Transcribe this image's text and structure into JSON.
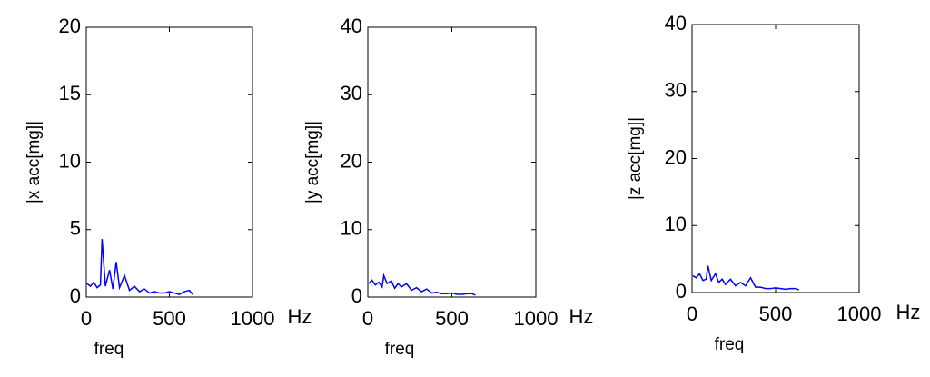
{
  "chart_data": [
    {
      "type": "line",
      "ylabel": "|x acc[mg]|",
      "xlabel": "freq",
      "x_unit": "Hz",
      "color": "#0000ff",
      "xlim": [
        0,
        1000
      ],
      "xticks": [
        0,
        500,
        1000
      ],
      "ylim": [
        0,
        20
      ],
      "yticks": [
        0,
        5,
        10,
        15,
        20
      ],
      "x": [
        5,
        25,
        45,
        65,
        85,
        95,
        115,
        140,
        160,
        180,
        200,
        230,
        260,
        290,
        320,
        350,
        380,
        410,
        440,
        470,
        500,
        530,
        560,
        590,
        620,
        640
      ],
      "values": [
        1.0,
        0.8,
        1.1,
        0.7,
        0.9,
        4.3,
        0.8,
        2.0,
        0.6,
        2.6,
        0.7,
        1.6,
        0.5,
        0.8,
        0.4,
        0.6,
        0.3,
        0.4,
        0.3,
        0.3,
        0.4,
        0.3,
        0.2,
        0.4,
        0.5,
        0.2
      ]
    },
    {
      "type": "line",
      "ylabel": "|y acc[mg]|",
      "xlabel": "freq",
      "x_unit": "Hz",
      "color": "#0000ff",
      "xlim": [
        0,
        1000
      ],
      "xticks": [
        0,
        500,
        1000
      ],
      "ylim": [
        0,
        40
      ],
      "yticks": [
        0,
        10,
        20,
        30,
        40
      ],
      "x": [
        5,
        25,
        45,
        65,
        85,
        95,
        115,
        140,
        160,
        180,
        200,
        230,
        260,
        290,
        320,
        350,
        380,
        410,
        440,
        470,
        500,
        530,
        560,
        590,
        620,
        640
      ],
      "values": [
        2.0,
        2.5,
        1.8,
        2.2,
        1.5,
        3.2,
        2.0,
        2.4,
        1.3,
        2.0,
        1.5,
        2.0,
        1.0,
        1.4,
        0.8,
        1.2,
        0.6,
        0.7,
        0.5,
        0.5,
        0.6,
        0.4,
        0.4,
        0.5,
        0.5,
        0.3
      ]
    },
    {
      "type": "line",
      "ylabel": "|z acc[mg]|",
      "xlabel": "freq",
      "x_unit": "Hz",
      "color": "#0000ff",
      "xlim": [
        0,
        1000
      ],
      "xticks": [
        0,
        500,
        1000
      ],
      "ylim": [
        0,
        40
      ],
      "yticks": [
        0,
        10,
        20,
        30,
        40
      ],
      "x": [
        5,
        25,
        45,
        65,
        85,
        95,
        115,
        140,
        160,
        180,
        200,
        230,
        260,
        290,
        320,
        350,
        380,
        410,
        440,
        470,
        500,
        530,
        560,
        590,
        620,
        640
      ],
      "values": [
        2.5,
        2.2,
        2.8,
        1.8,
        2.0,
        4.0,
        1.8,
        2.8,
        1.5,
        2.0,
        1.2,
        2.0,
        1.0,
        1.5,
        1.0,
        2.2,
        0.8,
        0.8,
        0.6,
        0.6,
        0.7,
        0.6,
        0.5,
        0.6,
        0.6,
        0.4
      ]
    }
  ]
}
